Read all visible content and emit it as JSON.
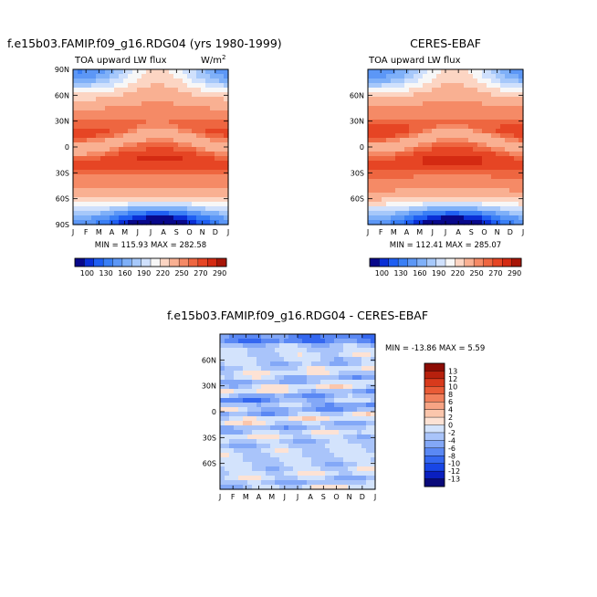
{
  "chart_data": [
    {
      "type": "heatmap",
      "title": "f.e15b03.FAMIP.f09_g16.RDG04 (yrs 1980-1999)",
      "subtitle": "TOA upward LW flux",
      "units": "W/m",
      "units_superscript": "2",
      "x": [
        "J",
        "F",
        "M",
        "A",
        "M",
        "J",
        "J",
        "A",
        "S",
        "O",
        "N",
        "D",
        "J"
      ],
      "y_ticks": [
        "90N",
        "60N",
        "30N",
        "0",
        "30S",
        "60S",
        "90S"
      ],
      "y_values": [
        90,
        60,
        30,
        0,
        -30,
        -60,
        -90
      ],
      "stats": "MIN = 115.93  MAX = 282.58",
      "field": "model_lw",
      "colorbar": {
        "levels": [
          "100",
          "130",
          "160",
          "190",
          "220",
          "250",
          "270",
          "290"
        ],
        "boundaries": [
          90,
          100,
          115,
          130,
          145,
          160,
          175,
          190,
          205,
          220,
          235,
          250,
          260,
          270,
          280,
          290,
          300
        ],
        "colors": [
          "#08088a",
          "#0a2fd6",
          "#1f5ff2",
          "#3a7ff5",
          "#5c97f6",
          "#7fb0f8",
          "#a6c8fa",
          "#cfe0fc",
          "#f7f7f7",
          "#fcd5c3",
          "#f9b092",
          "#f58a66",
          "#ee6640",
          "#e64524",
          "#d42a12",
          "#a81608"
        ]
      }
    },
    {
      "type": "heatmap",
      "title": "CERES-EBAF",
      "subtitle": "TOA upward LW flux",
      "x": [
        "J",
        "F",
        "M",
        "A",
        "M",
        "J",
        "J",
        "A",
        "S",
        "O",
        "N",
        "D",
        "J"
      ],
      "y_ticks": [
        "60N",
        "30N",
        "0",
        "30S",
        "60S"
      ],
      "y_values": [
        60,
        30,
        0,
        -30,
        -60
      ],
      "stats": "MIN = 112.41  MAX = 285.07",
      "field": "obs_lw",
      "colorbar": {
        "levels": [
          "100",
          "130",
          "160",
          "190",
          "220",
          "250",
          "270",
          "290"
        ],
        "boundaries": [
          90,
          100,
          115,
          130,
          145,
          160,
          175,
          190,
          205,
          220,
          235,
          250,
          260,
          270,
          280,
          290,
          300
        ],
        "colors": [
          "#08088a",
          "#0a2fd6",
          "#1f5ff2",
          "#3a7ff5",
          "#5c97f6",
          "#7fb0f8",
          "#a6c8fa",
          "#cfe0fc",
          "#f7f7f7",
          "#fcd5c3",
          "#f9b092",
          "#f58a66",
          "#ee6640",
          "#e64524",
          "#d42a12",
          "#a81608"
        ]
      }
    },
    {
      "type": "heatmap",
      "title": "f.e15b03.FAMIP.f09_g16.RDG04 - CERES-EBAF",
      "x": [
        "J",
        "F",
        "M",
        "A",
        "M",
        "J",
        "J",
        "A",
        "S",
        "O",
        "N",
        "D",
        "J"
      ],
      "y_ticks": [
        "60N",
        "30N",
        "0",
        "30S",
        "60S"
      ],
      "y_values": [
        60,
        30,
        0,
        -30,
        -60
      ],
      "stats": "MIN = -13.86  MAX =   5.59",
      "field": "difference",
      "colorbar": {
        "levels": [
          "13",
          "12",
          "10",
          "8",
          "6",
          "4",
          "2",
          "0",
          "-2",
          "-4",
          "-6",
          "-8",
          "-10",
          "-12",
          "-13"
        ],
        "boundaries": [
          -14,
          -13,
          -12,
          -10,
          -8,
          -6,
          -4,
          -2,
          0,
          2,
          4,
          6,
          8,
          10,
          12,
          13,
          14
        ],
        "colors": [
          "#0a0a7a",
          "#0a1fc0",
          "#1846e6",
          "#3467f0",
          "#5a88f4",
          "#83a8f7",
          "#a9c4fa",
          "#d3e3fc",
          "#fde2d4",
          "#fbc6ac",
          "#f7a484",
          "#f1805c",
          "#e95b36",
          "#d83a1c",
          "#b7200d",
          "#8c0c04"
        ]
      }
    }
  ]
}
